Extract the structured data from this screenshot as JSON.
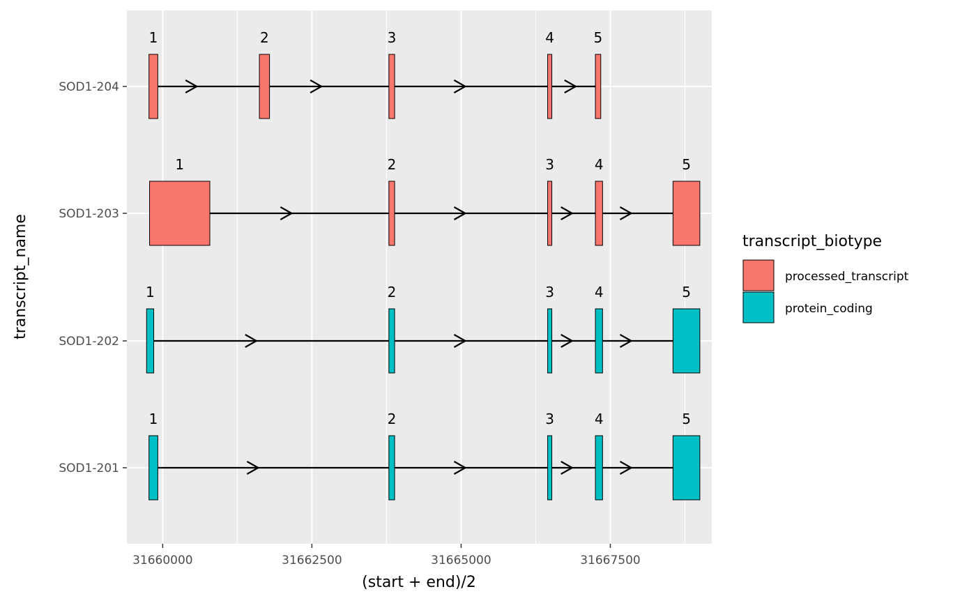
{
  "chart_data": {
    "type": "gene-structure",
    "xlabel": "(start + end)/2",
    "ylabel": "transcript_name",
    "xlim": [
      31659400,
      31669200
    ],
    "x_ticks": [
      {
        "value": 31660000,
        "label": "31660000"
      },
      {
        "value": 31662500,
        "label": "31662500"
      },
      {
        "value": 31665000,
        "label": "31665000"
      },
      {
        "value": 31667500,
        "label": "31667500"
      }
    ],
    "categories": [
      "SOD1-204",
      "SOD1-203",
      "SOD1-202",
      "SOD1-201"
    ],
    "legend": {
      "title": "transcript_biotype",
      "placement": "right",
      "entries": [
        {
          "key": "processed_transcript",
          "label": "processed_transcript",
          "color": "#F8766D"
        },
        {
          "key": "protein_coding",
          "label": "protein_coding",
          "color": "#00BFC4"
        }
      ]
    },
    "series": [
      {
        "name": "SOD1-204",
        "biotype": "processed_transcript",
        "exons": [
          {
            "label": "1",
            "start": 31659770,
            "end": 31659918
          },
          {
            "label": "2",
            "start": 31661620,
            "end": 31661790
          },
          {
            "label": "3",
            "start": 31663790,
            "end": 31663886
          },
          {
            "label": "4",
            "start": 31666450,
            "end": 31666520
          },
          {
            "label": "5",
            "start": 31667250,
            "end": 31667340
          }
        ],
        "arrows": [
          31660570,
          31662660,
          31665070,
          31666920
        ]
      },
      {
        "name": "SOD1-203",
        "biotype": "processed_transcript",
        "exons": [
          {
            "label": "1",
            "start": 31659780,
            "end": 31660790
          },
          {
            "label": "2",
            "start": 31663790,
            "end": 31663886
          },
          {
            "label": "3",
            "start": 31666450,
            "end": 31666520
          },
          {
            "label": "4",
            "start": 31667250,
            "end": 31667370
          },
          {
            "label": "5",
            "start": 31668550,
            "end": 31669000
          }
        ],
        "arrows": [
          31662160,
          31665070,
          31666860,
          31667850
        ]
      },
      {
        "name": "SOD1-202",
        "biotype": "protein_coding",
        "exons": [
          {
            "label": "1",
            "start": 31659730,
            "end": 31659850
          },
          {
            "label": "2",
            "start": 31663790,
            "end": 31663886
          },
          {
            "label": "3",
            "start": 31666450,
            "end": 31666520
          },
          {
            "label": "4",
            "start": 31667250,
            "end": 31667370
          },
          {
            "label": "5",
            "start": 31668550,
            "end": 31669000
          }
        ],
        "arrows": [
          31661570,
          31665070,
          31666860,
          31667850
        ]
      },
      {
        "name": "SOD1-201",
        "biotype": "protein_coding",
        "exons": [
          {
            "label": "1",
            "start": 31659770,
            "end": 31659918
          },
          {
            "label": "2",
            "start": 31663790,
            "end": 31663886
          },
          {
            "label": "3",
            "start": 31666450,
            "end": 31666520
          },
          {
            "label": "4",
            "start": 31667250,
            "end": 31667370
          },
          {
            "label": "5",
            "start": 31668550,
            "end": 31669000
          }
        ],
        "arrows": [
          31661600,
          31665070,
          31666860,
          31667850
        ]
      }
    ]
  }
}
